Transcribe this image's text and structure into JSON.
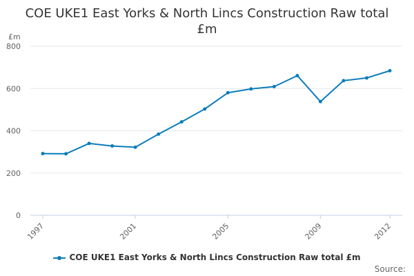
{
  "chart_data": {
    "type": "line",
    "title_lines": [
      "COE UKE1 East Yorks & North Lincs Construction Raw total",
      "£m"
    ],
    "y_unit_label": "£m",
    "x": [
      1997,
      1998,
      1999,
      2000,
      2001,
      2002,
      2003,
      2004,
      2005,
      2006,
      2007,
      2008,
      2009,
      2010,
      2011,
      2012
    ],
    "x_tick_labels": [
      "1997",
      "2001",
      "2005",
      "2009",
      "2012"
    ],
    "y_ticks": [
      0,
      200,
      400,
      600,
      800
    ],
    "ylim": [
      0,
      800
    ],
    "grid": true,
    "legend_position": "bottom",
    "series": [
      {
        "name": "COE UKE1 East Yorks & North Lincs Construction Raw total £m",
        "color": "#0b7cbc",
        "values": [
          292,
          291,
          340,
          328,
          322,
          384,
          442,
          503,
          580,
          598,
          609,
          661,
          538,
          637,
          650,
          684
        ]
      }
    ]
  },
  "credits": "Source:"
}
